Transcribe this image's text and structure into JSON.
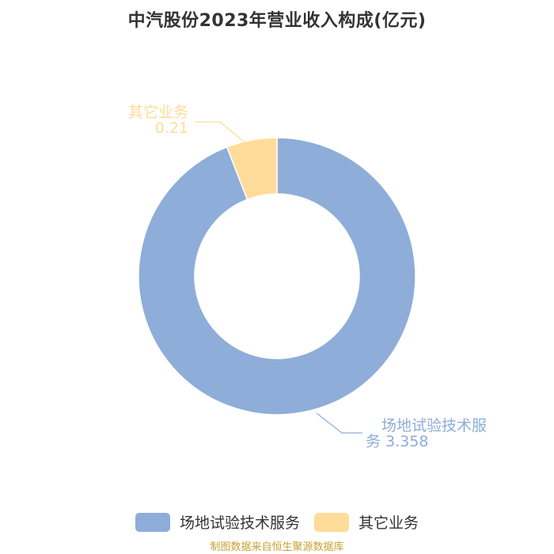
{
  "title": "中汽股份2023年营业收入构成(亿元)",
  "source": "制图数据来自恒生聚源数据库",
  "chart_data": {
    "type": "pie",
    "title": "中汽股份2023年营业收入构成(亿元)",
    "legend_position": "bottom",
    "slices": [
      {
        "name": "场地试验技术服务",
        "value": 3.358,
        "label_lines": [
          "场地试验技术服",
          "务 3.358"
        ],
        "color": "#8eadd9"
      },
      {
        "name": "其它业务",
        "value": 0.21,
        "label_lines": [
          "其它业务",
          "0.21"
        ],
        "color": "#ffdc99"
      }
    ]
  }
}
